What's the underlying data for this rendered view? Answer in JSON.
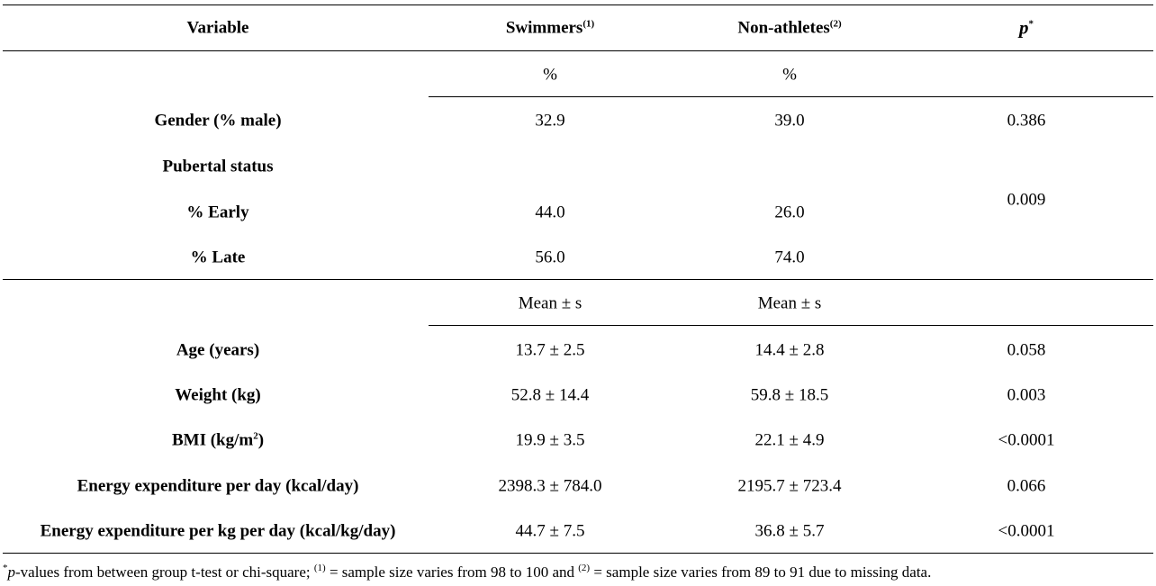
{
  "table": {
    "headers": {
      "variable": "Variable",
      "swimmers": "Swimmers",
      "swimmers_note": "(1)",
      "nonathletes": "Non-athletes",
      "nonathletes_note": "(2)",
      "p": "p",
      "p_note": "*"
    },
    "unit_percent": {
      "swimmers": "%",
      "nonathletes": "%"
    },
    "unit_mean": {
      "swimmers": "Mean ± s",
      "nonathletes": "Mean ± s"
    },
    "rows": [
      {
        "label": "Gender (% male)",
        "swimmers": "32.9",
        "nonathletes": "39.0",
        "p": "0.386"
      },
      {
        "label": "Pubertal status",
        "swimmers": "",
        "nonathletes": "",
        "p": "0.009"
      },
      {
        "label": "% Early",
        "swimmers": "44.0",
        "nonathletes": "26.0",
        "p": ""
      },
      {
        "label": "% Late",
        "swimmers": "56.0",
        "nonathletes": "74.0",
        "p": ""
      },
      {
        "label": "Age (years)",
        "swimmers": "13.7 ± 2.5",
        "nonathletes": "14.4 ± 2.8",
        "p": "0.058"
      },
      {
        "label": "Weight (kg)",
        "swimmers": "52.8 ± 14.4",
        "nonathletes": "59.8 ± 18.5",
        "p": "0.003"
      },
      {
        "label": "BMI (kg/m",
        "label_sup": "2",
        "label_end": ")",
        "swimmers": "19.9 ± 3.5",
        "nonathletes": "22.1 ± 4.9",
        "p": "<0.0001"
      },
      {
        "label": "Energy expenditure per day (kcal/day)",
        "swimmers": "2398.3 ± 784.0",
        "nonathletes": "2195.7 ± 723.4",
        "p": "0.066"
      },
      {
        "label": "Energy expenditure per kg per day (kcal/kg/day)",
        "swimmers": "44.7 ± 7.5",
        "nonathletes": "36.8 ± 5.7",
        "p": "<0.0001"
      }
    ]
  },
  "footnote": {
    "star": "*",
    "p_italic": "p",
    "text1": "-values from between group t-test or chi-square; ",
    "note1": "(1)",
    "text2": " = sample size varies from 98 to 100 and ",
    "note2": "(2)",
    "text3": " = sample size varies from 89 to 91 due to missing data."
  }
}
